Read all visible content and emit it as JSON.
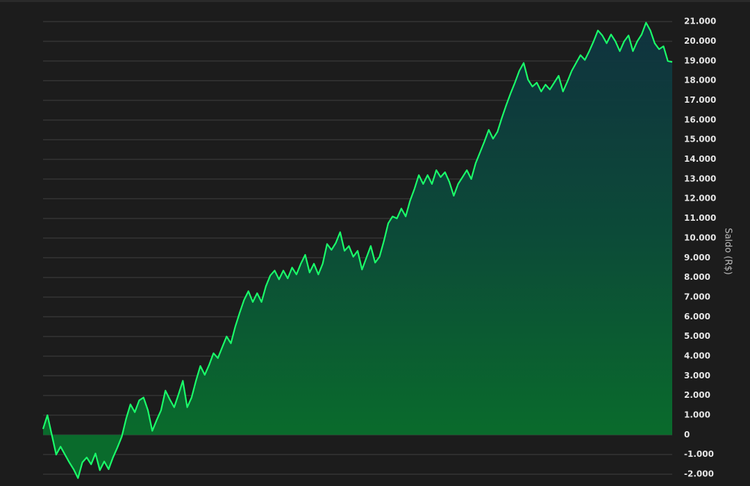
{
  "chart_data": {
    "type": "area-line",
    "y_axis_label": "Saldo (R$)",
    "color": "#1aff6a",
    "values": [
      300,
      1000,
      0,
      -1000,
      -600,
      -1000,
      -1400,
      -1750,
      -2200,
      -1400,
      -1150,
      -1500,
      -950,
      -1800,
      -1350,
      -1750,
      -1150,
      -650,
      -100,
      800,
      1550,
      1150,
      1750,
      1900,
      1250,
      200,
      750,
      1250,
      2250,
      1800,
      1400,
      2050,
      2750,
      1400,
      1900,
      2750,
      3500,
      3050,
      3550,
      4150,
      3900,
      4450,
      5000,
      4650,
      5500,
      6200,
      6850,
      7300,
      6750,
      7200,
      6750,
      7550,
      8100,
      8350,
      7900,
      8350,
      7950,
      8500,
      8150,
      8700,
      9150,
      8250,
      8700,
      8150,
      8700,
      9700,
      9400,
      9750,
      10300,
      9350,
      9600,
      9050,
      9350,
      8400,
      9000,
      9600,
      8750,
      9050,
      9850,
      10750,
      11100,
      11000,
      11500,
      11100,
      11900,
      12500,
      13200,
      12750,
      13200,
      12750,
      13450,
      13100,
      13350,
      12850,
      12150,
      12750,
      13100,
      13450,
      13000,
      13800,
      14350,
      14900,
      15500,
      15050,
      15400,
      16100,
      16750,
      17350,
      17900,
      18500,
      18900,
      18050,
      17700,
      17900,
      17450,
      17800,
      17550,
      17900,
      18250,
      17450,
      17950,
      18500,
      18900,
      19300,
      19050,
      19500,
      20000,
      20550,
      20300,
      19900,
      20350,
      20000,
      19500,
      20000,
      20300,
      19500,
      20000,
      20350,
      20950,
      20550,
      19900,
      19600,
      19750,
      19000,
      18950
    ],
    "ylim": [
      -2600,
      22100
    ],
    "yticks": [
      {
        "value": -2000,
        "label": "-2.000"
      },
      {
        "value": -1000,
        "label": "-1.000"
      },
      0,
      {
        "value": 1000,
        "label": "1.000"
      },
      {
        "value": 2000,
        "label": "2.000"
      },
      {
        "value": 3000,
        "label": "3.000"
      },
      {
        "value": 4000,
        "label": "4.000"
      },
      {
        "value": 5000,
        "label": "5.000"
      },
      {
        "value": 6000,
        "label": "6.000"
      },
      {
        "value": 7000,
        "label": "7.000"
      },
      {
        "value": 8000,
        "label": "8.000"
      },
      {
        "value": 9000,
        "label": "9.000"
      },
      {
        "value": 10000,
        "label": "10.000"
      },
      {
        "value": 11000,
        "label": "11.000"
      },
      {
        "value": 12000,
        "label": "12.000"
      },
      {
        "value": 13000,
        "label": "13.000"
      },
      {
        "value": 14000,
        "label": "14.000"
      },
      {
        "value": 15000,
        "label": "15.000"
      },
      {
        "value": 16000,
        "label": "16.000"
      },
      {
        "value": 17000,
        "label": "17.000"
      },
      {
        "value": 18000,
        "label": "18.000"
      },
      {
        "value": 19000,
        "label": "19.000"
      },
      {
        "value": 20000,
        "label": "20.000"
      },
      {
        "value": 21000,
        "label": "21.000"
      }
    ],
    "grid": true
  }
}
